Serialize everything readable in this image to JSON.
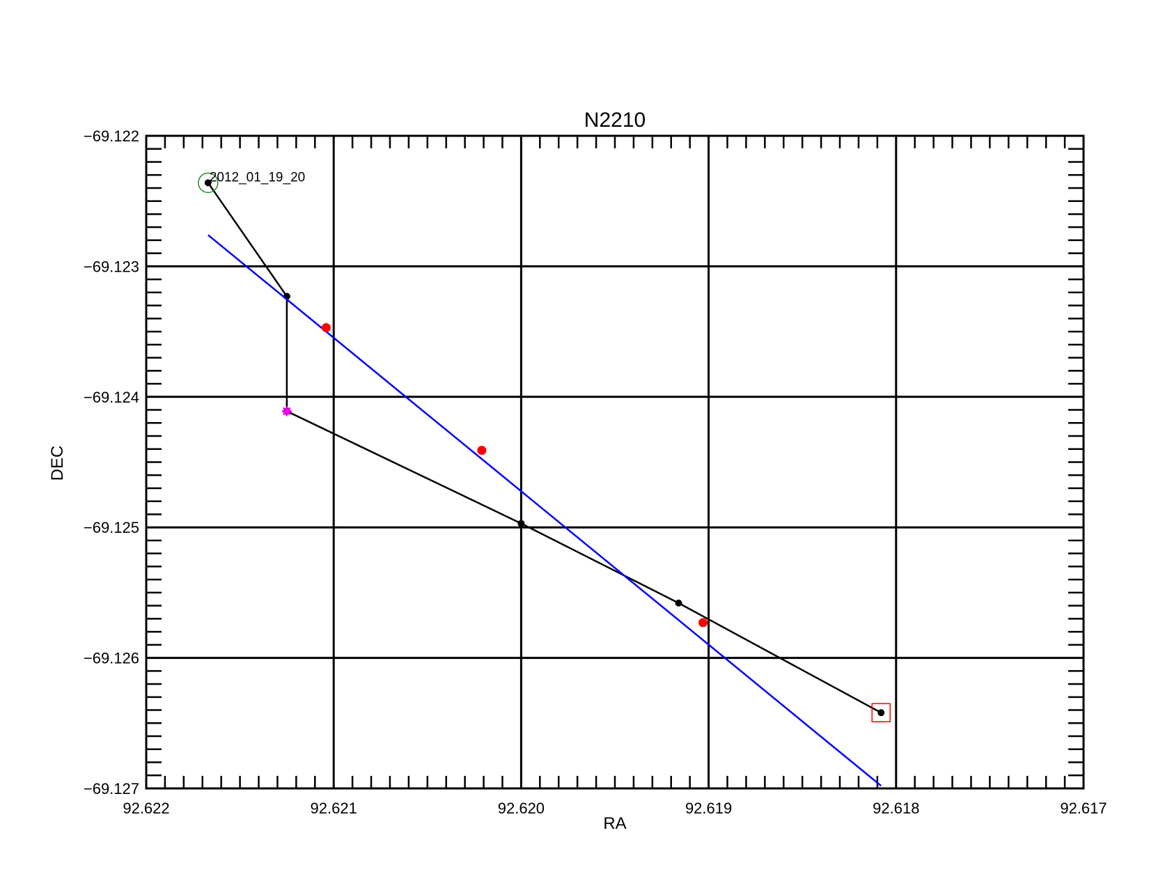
{
  "chart_data": {
    "type": "scatter",
    "title": "N2210",
    "xlabel": "RA",
    "ylabel": "DEC",
    "xlim": [
      92.622,
      92.617
    ],
    "ylim": [
      -69.127,
      -69.122
    ],
    "x_reversed": true,
    "grid": true,
    "xticks": [
      "92.622",
      "92.621",
      "92.620",
      "92.619",
      "92.618",
      "92.617"
    ],
    "yticks": [
      "−69.127",
      "−69.126",
      "−69.125",
      "−69.124",
      "−69.123",
      "−69.122"
    ],
    "series": [
      {
        "color": "#000000",
        "style": "line+markers",
        "points": [
          {
            "x": 92.62167,
            "y": -69.12236
          },
          {
            "x": 92.62125,
            "y": -69.12323
          },
          {
            "x": 92.62125,
            "y": -69.12411
          },
          {
            "x": 92.62,
            "y": -69.12497
          },
          {
            "x": 92.61916,
            "y": -69.12558
          },
          {
            "x": 92.61808,
            "y": -69.12642
          }
        ]
      },
      {
        "color": "#0000ff",
        "style": "line",
        "points": [
          {
            "x": 92.62167,
            "y": -69.12276
          },
          {
            "x": 92.61808,
            "y": -69.12698
          }
        ]
      },
      {
        "color": "#ff0000",
        "style": "markers",
        "points": [
          {
            "x": 92.62104,
            "y": -69.12347
          },
          {
            "x": 92.62021,
            "y": -69.12441
          },
          {
            "x": 92.61903,
            "y": -69.12573
          }
        ]
      }
    ],
    "special_markers": [
      {
        "shape": "circle",
        "color": "#228b22",
        "x": 92.62167,
        "y": -69.12236
      },
      {
        "shape": "star",
        "color": "#ff00ff",
        "x": 92.62125,
        "y": -69.12411
      },
      {
        "shape": "square",
        "color": "#ff0000",
        "x": 92.61808,
        "y": -69.12642
      }
    ],
    "annotations": [
      {
        "text": "2012_01_19_20",
        "x": 92.62167,
        "y": -69.12236
      }
    ]
  }
}
